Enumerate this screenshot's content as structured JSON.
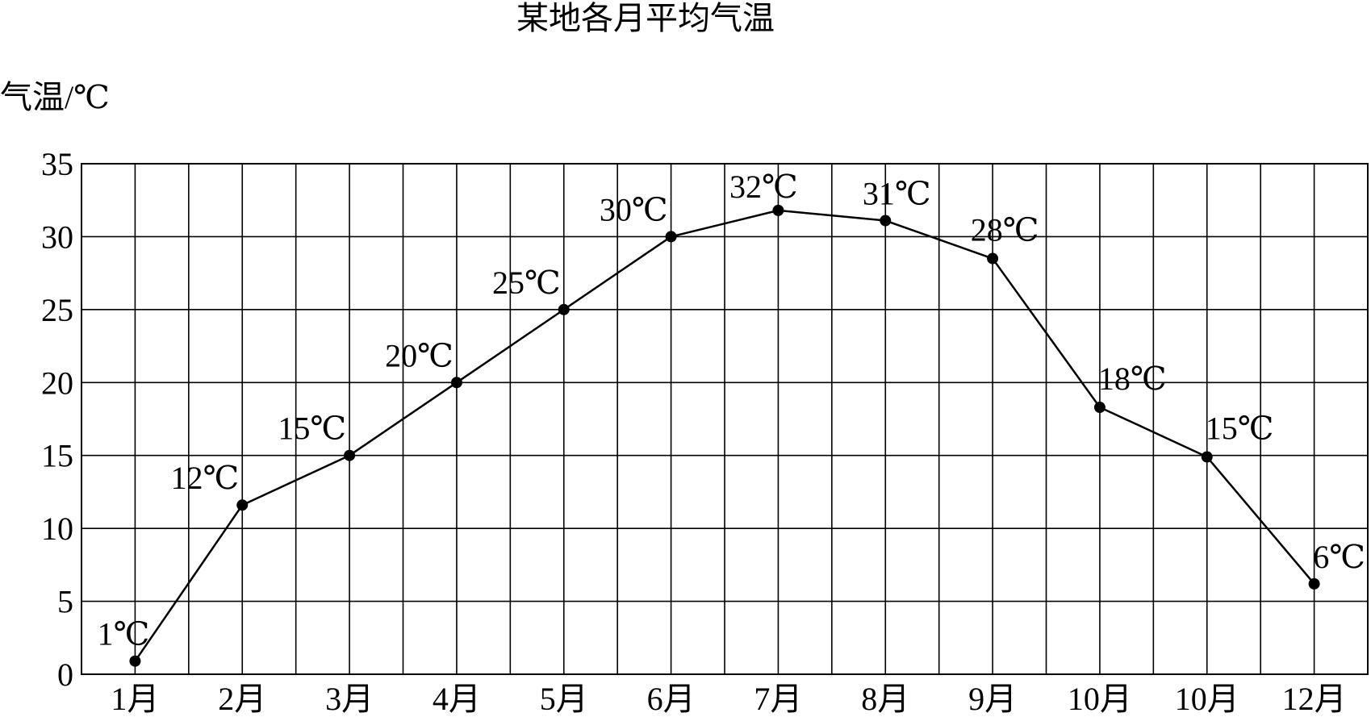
{
  "chart_data": {
    "type": "line",
    "title": "某地各月平均气温",
    "ylabel": "气温/℃",
    "xlabel": "",
    "ylim": [
      0,
      35
    ],
    "yticks": [
      0,
      5,
      10,
      15,
      20,
      25,
      30,
      35
    ],
    "grid": true,
    "colors": {
      "line": "#000000",
      "grid": "#000000",
      "background": "#ffffff"
    },
    "categories": [
      "1月",
      "2月",
      "3月",
      "4月",
      "5月",
      "6月",
      "7月",
      "8月",
      "9月",
      "10月",
      "10月",
      "12月"
    ],
    "series": [
      {
        "values": [
          0.9,
          11.6,
          15,
          20,
          25,
          30,
          31.8,
          31.1,
          28.5,
          18.3,
          14.9,
          6.2
        ],
        "labels": [
          "1℃",
          "12℃",
          "15℃",
          "20℃",
          "25℃",
          "30℃",
          "32℃",
          "31℃",
          "28℃",
          "18℃",
          "15℃",
          "6℃"
        ]
      }
    ]
  }
}
